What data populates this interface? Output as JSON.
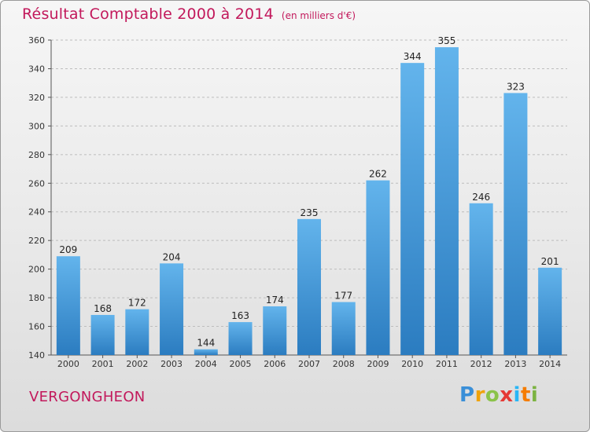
{
  "title": "Résultat Comptable 2000 à 2014",
  "unit_note": "(en milliers d'€)",
  "commune": "VERGONGHEON",
  "logo": {
    "letters": [
      "P",
      "r",
      "o",
      "x",
      "i",
      "t",
      "i"
    ],
    "colors": [
      "#3a8fd8",
      "#f0a30a",
      "#8bc34a",
      "#e53935",
      "#29b6f6",
      "#f57c00",
      "#7cb342"
    ]
  },
  "colors": {
    "bar_light": "#63b4ec",
    "bar_dark": "#2b7cc0",
    "title": "#c2185b",
    "label": "#222222"
  },
  "chart_data": {
    "type": "bar",
    "categories": [
      "2000",
      "2001",
      "2002",
      "2003",
      "2004",
      "2005",
      "2006",
      "2007",
      "2008",
      "2009",
      "2010",
      "2011",
      "2012",
      "2013",
      "2014"
    ],
    "values": [
      209,
      168,
      172,
      204,
      144,
      163,
      174,
      235,
      177,
      262,
      344,
      355,
      246,
      323,
      201
    ],
    "ylim": [
      140,
      360
    ],
    "yticks": [
      140,
      160,
      180,
      200,
      220,
      240,
      260,
      280,
      300,
      320,
      340,
      360
    ],
    "grid": true,
    "data_labels": true
  }
}
